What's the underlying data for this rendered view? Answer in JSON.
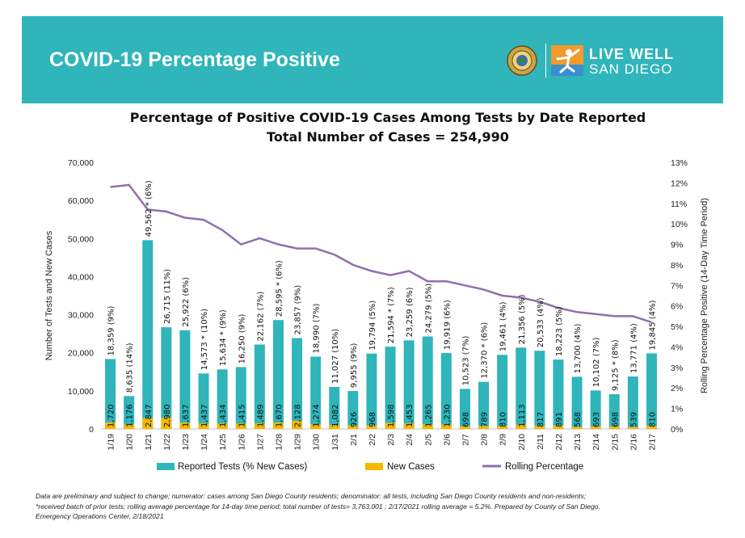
{
  "header": {
    "title": "COVID-19 Percentage Positive",
    "logo_line1": "LIVE WELL",
    "logo_line2": "SAN DIEGO"
  },
  "colors": {
    "banner": "#2fb5ba",
    "tests_bar": "#2fb5ba",
    "new_cases_bar": "#f5b800",
    "rolling_line": "#8f6fb0"
  },
  "footnote": {
    "line1": "Data are preliminary and subject to change; numerator: cases among San Diego County residents; denominator: all tests, including San Diego County residents and non-residents;",
    "line2": "*received batch of prior tests; rolling average percentage for 14-day time period; total number of tests= 3,763,001 ; 2/17/2021 rolling average = 5.2%. Prepared by County of San Diego,",
    "line3": "Emergency Operations Center, 2/18/2021"
  },
  "chart_data": {
    "type": "bar",
    "title": "Percentage of Positive COVID-19 Cases Among Tests by Date Reported",
    "subtitle": "Total Number of Cases = 254,990",
    "ylabel": "Number of Tests and New Cases",
    "y2label": "Rolling Percentage Positive (14-Day Time Period)",
    "ylim": [
      0,
      70000
    ],
    "y2lim": [
      0,
      13
    ],
    "yticks": [
      "70,000",
      "60,000",
      "50,000",
      "40,000",
      "30,000",
      "20,000",
      "10,000",
      "0"
    ],
    "y2ticks": [
      "13%",
      "12%",
      "11%",
      "10%",
      "9%",
      "8%",
      "7%",
      "6%",
      "5%",
      "4%",
      "3%",
      "2%",
      "1%",
      "0%"
    ],
    "legend_position": "bottom",
    "categories": [
      "1/19",
      "1/20",
      "1/21",
      "1/22",
      "1/23",
      "1/24",
      "1/25",
      "1/26",
      "1/27",
      "1/28",
      "1/29",
      "1/30",
      "1/31",
      "2/1",
      "2/2",
      "2/3",
      "2/4",
      "2/5",
      "2/6",
      "2/7",
      "2/8",
      "2/9",
      "2/10",
      "2/11",
      "2/12",
      "2/13",
      "2/14",
      "2/15",
      "2/16",
      "2/17"
    ],
    "series": [
      {
        "name": "Reported Tests (% New Cases)",
        "values": [
          18359,
          8635,
          49562,
          26715,
          25922,
          14573,
          15634,
          16250,
          22162,
          28595,
          23857,
          18990,
          11027,
          9955,
          19794,
          21594,
          23259,
          24279,
          19919,
          10523,
          12370,
          19461,
          21356,
          20533,
          18223,
          13700,
          10102,
          9125,
          13771,
          19845
        ],
        "labels": [
          "18,359 (9%)",
          "8,635 (14%)",
          "49,562 * (6%)",
          "26,715 (11%)",
          "25,922 (6%)",
          "14,573 * (10%)",
          "15,634 * (9%)",
          "16,250 (9%)",
          "22,162 (7%)",
          "28,595 * (6%)",
          "23,857 (9%)",
          "18,990 (7%)",
          "11,027 (10%)",
          "9,955 (9%)",
          "19,794 (5%)",
          "21,594 * (7%)",
          "23,259 (6%)",
          "24,279 (5%)",
          "19,919 (6%)",
          "10,523 (7%)",
          "12,370 * (6%)",
          "19,461 (4%)",
          "21,356 (5%)",
          "20,533 (4%)",
          "18,223 (5%)",
          "13,700 (4%)",
          "10,102 (7%)",
          "9,125 * (8%)",
          "13,771 (4%)",
          "19,845 (4%)"
        ]
      },
      {
        "name": "New Cases",
        "values": [
          1720,
          1176,
          2847,
          2980,
          1637,
          1437,
          1434,
          1415,
          1489,
          1670,
          2128,
          1274,
          1082,
          926,
          968,
          1598,
          1453,
          1265,
          1230,
          698,
          789,
          810,
          1113,
          817,
          891,
          568,
          693,
          698,
          539,
          810
        ],
        "labels": [
          "1,720",
          "1,176",
          "2,847",
          "2,980",
          "1,637",
          "1,437",
          "1,434",
          "1,415",
          "1,489",
          "1,670",
          "2,128",
          "1,274",
          "1,082",
          "926",
          "968",
          "1,598",
          "1,453",
          "1,265",
          "1,230",
          "698",
          "789",
          "810",
          "1,113",
          "817",
          "891",
          "568",
          "693",
          "698",
          "539",
          "810"
        ]
      },
      {
        "name": "Rolling Percentage",
        "axis": "right",
        "values": [
          11.8,
          11.9,
          10.7,
          10.6,
          10.3,
          10.2,
          9.7,
          9.0,
          9.3,
          9.0,
          8.8,
          8.8,
          8.5,
          8.0,
          7.7,
          7.5,
          7.7,
          7.2,
          7.2,
          7.0,
          6.8,
          6.5,
          6.4,
          6.2,
          5.9,
          5.7,
          5.6,
          5.5,
          5.5,
          5.2
        ]
      }
    ]
  }
}
